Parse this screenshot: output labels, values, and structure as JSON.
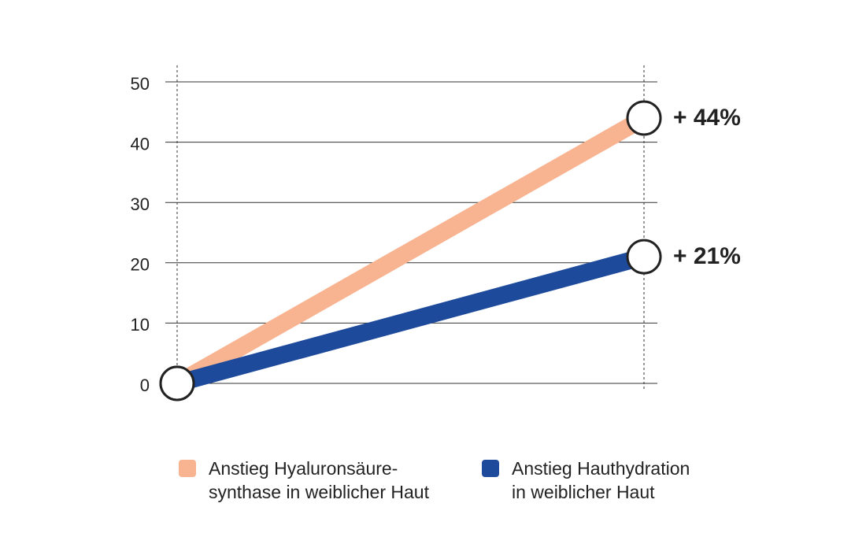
{
  "chart_data": {
    "type": "line",
    "categories": [
      null,
      null
    ],
    "series": [
      {
        "name": "Anstieg Hyaluronsäure-\nsynthase in weiblicher Haut",
        "color": "#f8b490",
        "values": [
          0,
          44
        ],
        "value_labels": [
          null,
          "+ 44%"
        ]
      },
      {
        "name": "Anstieg Hauthydration\nin weiblicher Haut",
        "color": "#1e4a9c",
        "values": [
          0,
          21
        ],
        "value_labels": [
          null,
          "+ 21%"
        ]
      }
    ],
    "ylim": [
      0,
      50
    ],
    "yticks": [
      0,
      10,
      20,
      30,
      40,
      50
    ],
    "grid": true
  }
}
